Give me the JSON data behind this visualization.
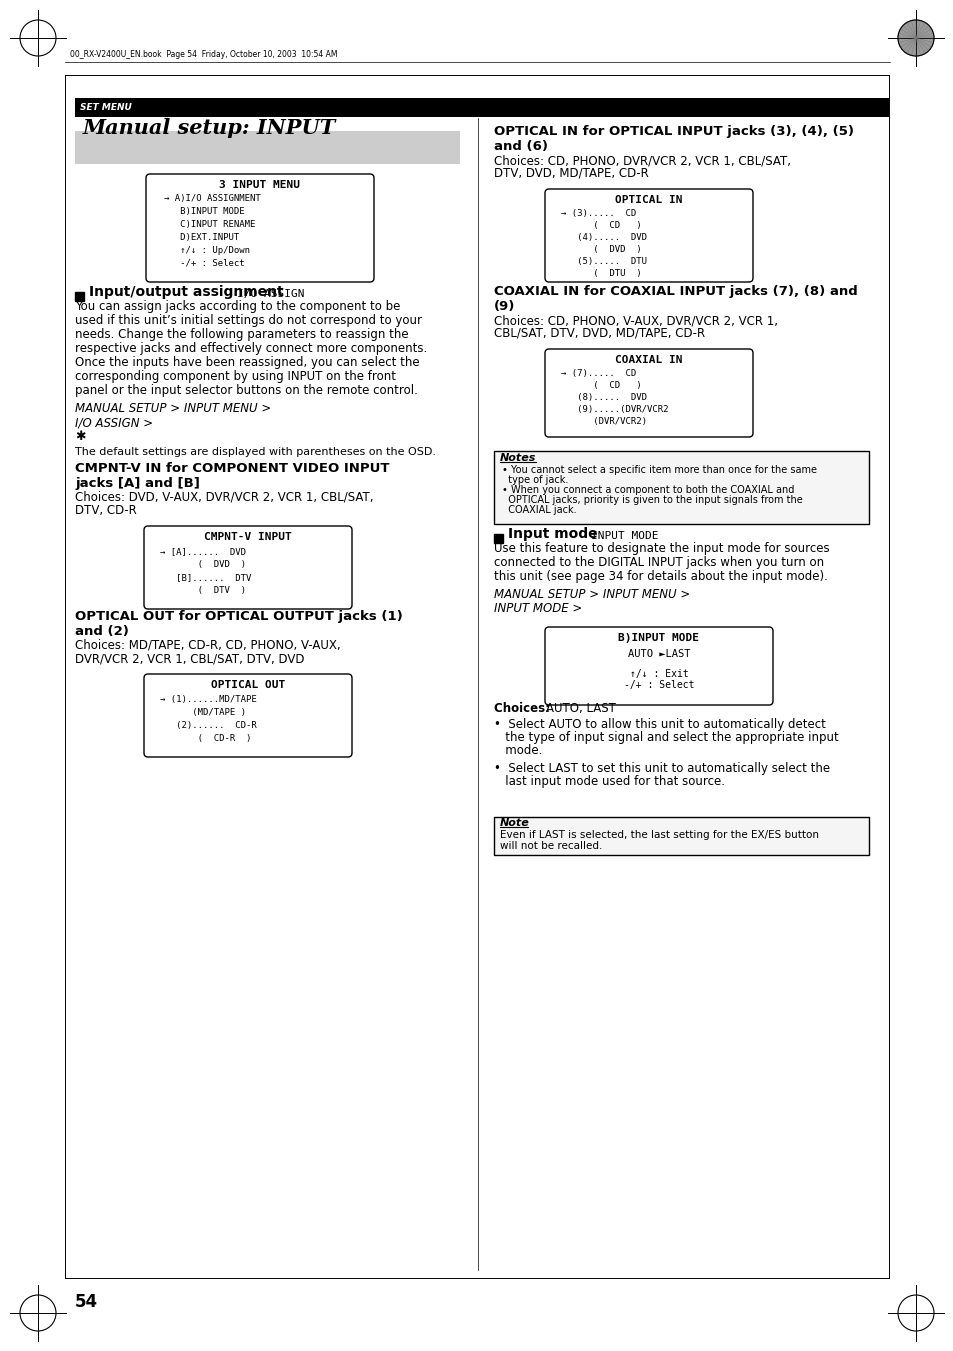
{
  "page_bg": "#ffffff",
  "header_bar_color": "#000000",
  "header_text": "SET MENU",
  "header_text_color": "#ffffff",
  "title_box_bg": "#cccccc",
  "title_text": "Manual setup: INPUT",
  "page_number": "54",
  "file_info": "00_RX-V2400U_EN.book  Page 54  Friday, October 10, 2003  10:54 AM",
  "menu_box1_title": "3 INPUT MENU",
  "menu_box1_lines": [
    "→ A)I/O ASSIGNMENT",
    "   B)INPUT MODE",
    "   C)INPUT RENAME",
    "   D)EXT.INPUT",
    "   ↑/↓ : Up/Down",
    "   -/+ : Select"
  ],
  "section1_heading": "Input/output assignment",
  "section1_osd": "I/O ASSIGN",
  "section1_body": [
    "You can assign jacks according to the component to be",
    "used if this unit’s initial settings do not correspond to your",
    "needs. Change the following parameters to reassign the",
    "respective jacks and effectively connect more components.",
    "Once the inputs have been reassigned, you can select the",
    "corresponding component by using INPUT on the front",
    "panel or the input selector buttons on the remote control."
  ],
  "section1_path1": "MANUAL SETUP > INPUT MENU >",
  "section1_path2": "I/O ASSIGN >",
  "section1_note": "The default settings are displayed with parentheses on the OSD.",
  "cmpntv_heading1": "CMPNT-V IN for COMPONENT VIDEO INPUT",
  "cmpntv_heading2": "jacks [A] and [B]",
  "cmpntv_choices1": "Choices: DVD, V-AUX, DVR/VCR 2, VCR 1, CBL/SAT,",
  "cmpntv_choices2": "DTV, CD-R",
  "menu_box_cmpntv_title": "CMPNT-V INPUT",
  "menu_box_cmpntv_lines": [
    "→ [A]......  DVD",
    "       (  DVD  )",
    "   [B]......  DTV",
    "       (  DTV  )"
  ],
  "optout_heading1": "OPTICAL OUT for OPTICAL OUTPUT jacks (1)",
  "optout_heading2": "and (2)",
  "optout_choices1": "Choices: MD/TAPE, CD-R, CD, PHONO, V-AUX,",
  "optout_choices2": "DVR/VCR 2, VCR 1, CBL/SAT, DTV, DVD",
  "menu_box_optout_title": "OPTICAL OUT",
  "menu_box_optout_lines": [
    "→ (1)......MD/TAPE",
    "      (MD/TAPE )",
    "   (2)......  CD-R",
    "       (  CD-R  )"
  ],
  "optin_heading1": "OPTICAL IN for OPTICAL INPUT jacks (3), (4), (5)",
  "optin_heading2": "and (6)",
  "optin_choices1": "Choices: CD, PHONO, DVR/VCR 2, VCR 1, CBL/SAT,",
  "optin_choices2": "DTV, DVD, MD/TAPE, CD-R",
  "menu_box_optin_title": "OPTICAL IN",
  "menu_box_optin_lines": [
    "→ (3).....  CD",
    "      (  CD   )",
    "   (4).....  DVD",
    "      (  DVD  )",
    "   (5).....  DTU",
    "      (  DTU  )"
  ],
  "coaxin_heading1": "COAXIAL IN for COAXIAL INPUT jacks (7), (8) and",
  "coaxin_heading2": "(9)",
  "coaxin_choices1": "Choices: CD, PHONO, V-AUX, DVR/VCR 2, VCR 1,",
  "coaxin_choices2": "CBL/SAT, DTV, DVD, MD/TAPE, CD-R",
  "menu_box_coaxin_title": "COAXIAL IN",
  "menu_box_coaxin_lines": [
    "→ (7).....  CD",
    "      (  CD   )",
    "   (8).....  DVD",
    "   (9).....(DVR/VCR2",
    "      (DVR/VCR2)"
  ],
  "notes_title": "Notes",
  "notes_box_lines": [
    "• You cannot select a specific item more than once for the same",
    "  type of jack.",
    "• When you connect a component to both the COAXIAL and",
    "  OPTICAL jacks, priority is given to the input signals from the",
    "  COAXIAL jack."
  ],
  "section2_heading": "Input mode",
  "section2_osd": "INPUT MODE",
  "section2_body": [
    "Use this feature to designate the input mode for sources",
    "connected to the DIGITAL INPUT jacks when you turn on",
    "this unit (see page 34 for details about the input mode)."
  ],
  "section2_path1": "MANUAL SETUP > INPUT MENU >",
  "section2_path2": "INPUT MODE >",
  "menu_box_inputmode_title": "B)INPUT MODE",
  "menu_box_inputmode_line1": "AUTO ►LAST",
  "menu_box_inputmode_line2": "↑/↓ : Exit",
  "menu_box_inputmode_line3": "-/+ : Select",
  "choices_inputmode_bold": "Choices: ",
  "choices_inputmode_rest": "AUTO, LAST",
  "bullet1_lines": [
    "•  Select AUTO to allow this unit to automatically detect",
    "   the type of input signal and select the appropriate input",
    "   mode."
  ],
  "bullet2_lines": [
    "•  Select LAST to set this unit to automatically select the",
    "   last input mode used for that source."
  ],
  "note2_title": "Note",
  "note2_lines": [
    "Even if LAST is selected, the last setting for the EX/ES button",
    "will not be recalled."
  ]
}
